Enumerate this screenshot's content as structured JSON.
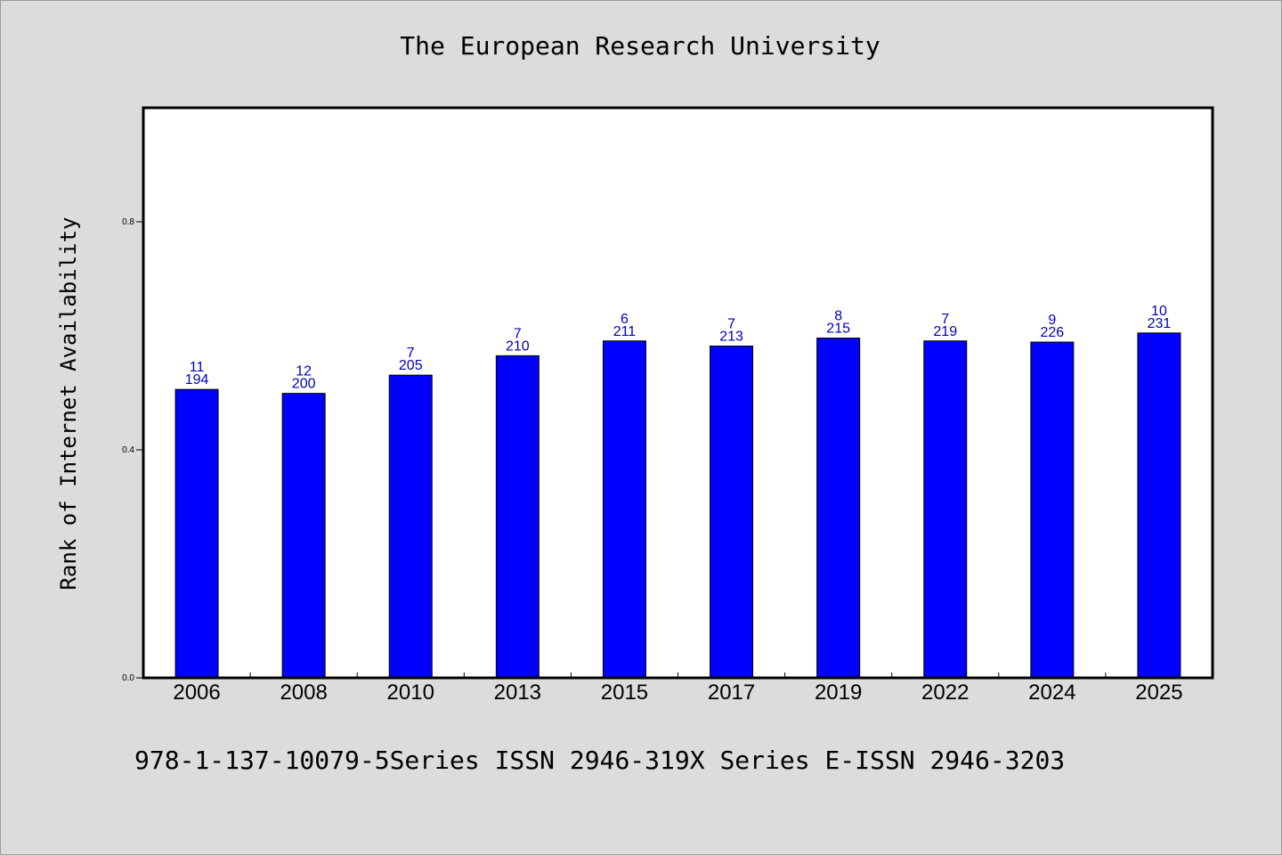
{
  "chart_data": {
    "type": "bar",
    "title": "The European Research University",
    "xlabel": "",
    "ylabel": "Rank of Internet Availability",
    "categories": [
      "2006",
      "2008",
      "2010",
      "2013",
      "2015",
      "2017",
      "2019",
      "2022",
      "2024",
      "2025"
    ],
    "values": [
      0.506,
      0.499,
      0.531,
      0.565,
      0.591,
      0.582,
      0.596,
      0.591,
      0.589,
      0.605
    ],
    "bar_labels": [
      [
        "11",
        "194"
      ],
      [
        "12",
        "200"
      ],
      [
        "7",
        "205"
      ],
      [
        "7",
        "210"
      ],
      [
        "6",
        "211"
      ],
      [
        "7",
        "213"
      ],
      [
        "8",
        "215"
      ],
      [
        "7",
        "219"
      ],
      [
        "9",
        "226"
      ],
      [
        "10",
        "231"
      ]
    ],
    "ylim": [
      0,
      1.0
    ],
    "yticks": [
      "0.0",
      "0.4",
      "0.8"
    ],
    "ytick_values": [
      0,
      0.4,
      0.8
    ],
    "grid": false,
    "bar_color": "#0000ff",
    "label_color": "#0000b4"
  },
  "footer": {
    "text": "978-1-137-10079-5Series ISSN 2946-319X Series E-ISSN 2946-3203"
  }
}
